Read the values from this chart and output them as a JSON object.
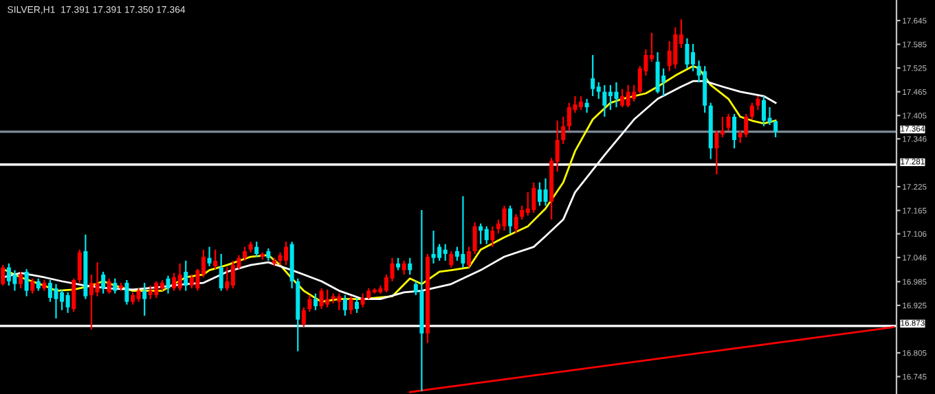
{
  "chart_data": {
    "type": "candlestick",
    "title": "SILVER,H1  17.391 17.391 17.350 17.364",
    "categories": [
      null,
      null,
      null,
      null,
      null,
      null,
      null,
      null,
      null,
      null,
      null,
      null,
      null,
      null,
      null,
      null,
      null,
      null,
      null,
      null,
      null,
      null,
      null,
      null,
      null,
      null,
      null,
      null,
      null,
      null,
      null,
      null,
      null,
      null,
      null,
      null,
      null,
      null,
      null,
      null,
      null,
      null,
      null,
      null,
      null,
      null,
      null,
      null,
      null,
      null,
      null,
      null,
      null,
      null,
      null,
      null,
      null,
      null,
      null,
      null,
      null,
      null,
      null,
      null,
      null,
      null,
      null,
      null,
      null,
      null,
      null,
      null,
      null,
      null,
      null,
      null,
      null,
      null,
      null,
      null,
      null,
      null,
      null,
      null,
      null,
      null,
      null,
      null,
      null,
      null,
      null,
      null,
      null,
      null,
      null,
      null,
      null,
      null,
      null,
      null,
      null,
      null,
      null,
      null,
      null,
      null,
      null,
      null,
      null,
      null,
      null,
      null,
      null,
      null,
      null,
      null,
      null,
      null,
      null,
      null,
      null,
      null,
      null,
      null,
      null,
      null,
      null,
      null,
      null,
      null,
      null,
      null,
      null,
      null,
      null,
      null,
      null,
      null,
      null,
      null,
      null,
      null,
      null,
      null,
      null,
      null,
      null,
      null,
      null,
      null,
      null,
      null
    ],
    "ohlc": [
      [
        16.979,
        17.027,
        16.975,
        17.021
      ],
      [
        17.021,
        17.031,
        16.975,
        16.986
      ],
      [
        17.003,
        17.014,
        16.962,
        16.979
      ],
      [
        16.979,
        17.01,
        16.968,
        17.003
      ],
      [
        17.01,
        17.017,
        16.948,
        16.962
      ],
      [
        16.962,
        16.993,
        16.955,
        16.986
      ],
      [
        16.986,
        16.993,
        16.962,
        16.968
      ],
      [
        16.968,
        16.989,
        16.962,
        16.982
      ],
      [
        16.982,
        16.989,
        16.934,
        16.944
      ],
      [
        16.968,
        16.979,
        16.892,
        16.941
      ],
      [
        16.958,
        16.965,
        16.913,
        16.934
      ],
      [
        16.951,
        16.958,
        16.906,
        16.92
      ],
      [
        16.916,
        16.993,
        16.909,
        16.989
      ],
      [
        16.989,
        17.066,
        16.982,
        17.059
      ],
      [
        17.062,
        17.104,
        16.941,
        16.948
      ],
      [
        16.951,
        17.003,
        16.864,
        16.982
      ],
      [
        16.958,
        17.034,
        16.948,
        16.982
      ],
      [
        17.003,
        17.01,
        16.955,
        16.968
      ],
      [
        16.958,
        16.993,
        16.955,
        16.986
      ],
      [
        16.982,
        16.993,
        16.955,
        16.962
      ],
      [
        16.968,
        16.982,
        16.962,
        16.975
      ],
      [
        16.982,
        16.989,
        16.927,
        16.934
      ],
      [
        16.934,
        16.958,
        16.927,
        16.951
      ],
      [
        16.941,
        16.968,
        16.934,
        16.962
      ],
      [
        16.962,
        16.982,
        16.899,
        16.941
      ],
      [
        16.951,
        16.975,
        16.941,
        16.962
      ],
      [
        16.951,
        16.986,
        16.944,
        16.982
      ],
      [
        16.968,
        16.989,
        16.962,
        16.982
      ],
      [
        16.993,
        17.0,
        16.955,
        16.968
      ],
      [
        16.968,
        17.007,
        16.962,
        16.996
      ],
      [
        16.968,
        17.031,
        16.962,
        17.003
      ],
      [
        17.01,
        17.038,
        16.962,
        16.975
      ],
      [
        16.975,
        17.003,
        16.968,
        16.996
      ],
      [
        16.968,
        17.017,
        16.962,
        17.014
      ],
      [
        17.003,
        17.066,
        16.996,
        17.048
      ],
      [
        17.045,
        17.073,
        17.024,
        17.031
      ],
      [
        17.024,
        17.066,
        17.017,
        17.038
      ],
      [
        17.021,
        17.055,
        16.962,
        16.968
      ],
      [
        16.968,
        17.021,
        16.962,
        16.986
      ],
      [
        16.975,
        17.038,
        16.968,
        17.027
      ],
      [
        17.021,
        17.052,
        17.017,
        17.045
      ],
      [
        17.045,
        17.073,
        17.038,
        17.062
      ],
      [
        17.066,
        17.086,
        17.059,
        17.08
      ],
      [
        17.073,
        17.086,
        17.048,
        17.055
      ],
      [
        17.048,
        17.059,
        17.041,
        17.055
      ],
      [
        17.062,
        17.069,
        17.038,
        17.045
      ],
      [
        17.031,
        17.045,
        17.024,
        17.038
      ],
      [
        17.038,
        17.059,
        17.027,
        17.052
      ],
      [
        17.038,
        17.086,
        17.027,
        17.073
      ],
      [
        17.08,
        17.086,
        16.968,
        16.986
      ],
      [
        16.986,
        16.993,
        16.809,
        16.889
      ],
      [
        16.878,
        16.92,
        16.871,
        16.913
      ],
      [
        16.916,
        16.951,
        16.909,
        16.941
      ],
      [
        16.941,
        16.955,
        16.913,
        16.923
      ],
      [
        16.923,
        16.968,
        16.916,
        16.962
      ],
      [
        16.927,
        16.965,
        16.92,
        16.941
      ],
      [
        16.941,
        16.955,
        16.93,
        16.948
      ],
      [
        16.934,
        16.955,
        16.913,
        16.948
      ],
      [
        16.941,
        16.951,
        16.899,
        16.913
      ],
      [
        16.913,
        16.948,
        16.903,
        16.941
      ],
      [
        16.934,
        16.944,
        16.906,
        16.916
      ],
      [
        16.927,
        16.955,
        16.92,
        16.944
      ],
      [
        16.944,
        16.968,
        16.941,
        16.962
      ],
      [
        16.958,
        16.968,
        16.955,
        16.965
      ],
      [
        16.958,
        16.975,
        16.955,
        16.968
      ],
      [
        16.962,
        17.003,
        16.958,
        16.996
      ],
      [
        16.993,
        17.045,
        16.986,
        17.031
      ],
      [
        17.031,
        17.045,
        17.014,
        17.021
      ],
      [
        17.014,
        17.038,
        17.003,
        17.031
      ],
      [
        17.031,
        17.045,
        17.003,
        17.014
      ],
      [
        16.979,
        16.986,
        16.951,
        16.958
      ],
      [
        16.962,
        17.166,
        16.708,
        16.854
      ],
      [
        16.854,
        17.055,
        16.83,
        17.048
      ],
      [
        17.055,
        17.114,
        17.031,
        17.045
      ],
      [
        17.073,
        17.08,
        17.038,
        17.045
      ],
      [
        17.066,
        17.08,
        17.038,
        17.055
      ],
      [
        17.027,
        17.062,
        17.021,
        17.055
      ],
      [
        17.062,
        17.073,
        17.038,
        17.048
      ],
      [
        17.055,
        17.201,
        17.021,
        17.031
      ],
      [
        17.027,
        17.073,
        17.021,
        17.062
      ],
      [
        17.062,
        17.135,
        17.055,
        17.125
      ],
      [
        17.125,
        17.132,
        17.08,
        17.114
      ],
      [
        17.118,
        17.125,
        17.08,
        17.09
      ],
      [
        17.09,
        17.125,
        17.073,
        17.114
      ],
      [
        17.118,
        17.142,
        17.107,
        17.132
      ],
      [
        17.125,
        17.177,
        17.114,
        17.17
      ],
      [
        17.17,
        17.177,
        17.107,
        17.125
      ],
      [
        17.118,
        17.156,
        17.107,
        17.149
      ],
      [
        17.149,
        17.177,
        17.142,
        17.166
      ],
      [
        17.159,
        17.211,
        17.152,
        17.17
      ],
      [
        17.166,
        17.236,
        17.159,
        17.222
      ],
      [
        17.218,
        17.236,
        17.177,
        17.187
      ],
      [
        17.218,
        17.246,
        17.177,
        17.187
      ],
      [
        17.187,
        17.298,
        17.142,
        17.291
      ],
      [
        17.288,
        17.392,
        17.263,
        17.343
      ],
      [
        17.343,
        17.402,
        17.333,
        17.378
      ],
      [
        17.378,
        17.437,
        17.367,
        17.426
      ],
      [
        17.419,
        17.454,
        17.412,
        17.433
      ],
      [
        17.426,
        17.454,
        17.419,
        17.44
      ],
      [
        17.437,
        17.447,
        17.412,
        17.426
      ],
      [
        17.499,
        17.558,
        17.454,
        17.472
      ],
      [
        17.478,
        17.489,
        17.447,
        17.465
      ],
      [
        17.465,
        17.482,
        17.402,
        17.43
      ],
      [
        17.465,
        17.482,
        17.419,
        17.454
      ],
      [
        17.465,
        17.489,
        17.426,
        17.447
      ],
      [
        17.43,
        17.472,
        17.426,
        17.454
      ],
      [
        17.43,
        17.482,
        17.426,
        17.465
      ],
      [
        17.447,
        17.482,
        17.44,
        17.465
      ],
      [
        17.465,
        17.53,
        17.461,
        17.524
      ],
      [
        17.517,
        17.572,
        17.506,
        17.558
      ],
      [
        17.548,
        17.614,
        17.541,
        17.558
      ],
      [
        17.541,
        17.565,
        17.461,
        17.465
      ],
      [
        17.506,
        17.524,
        17.454,
        17.489
      ],
      [
        17.53,
        17.593,
        17.517,
        17.569
      ],
      [
        17.534,
        17.628,
        17.524,
        17.61
      ],
      [
        17.586,
        17.648,
        17.576,
        17.61
      ],
      [
        17.586,
        17.6,
        17.524,
        17.534
      ],
      [
        17.565,
        17.586,
        17.517,
        17.534
      ],
      [
        17.53,
        17.544,
        17.489,
        17.506
      ],
      [
        17.517,
        17.53,
        17.412,
        17.43
      ],
      [
        17.43,
        17.437,
        17.295,
        17.322
      ],
      [
        17.322,
        17.367,
        17.256,
        17.361
      ],
      [
        17.357,
        17.402,
        17.35,
        17.367
      ],
      [
        17.374,
        17.409,
        17.367,
        17.402
      ],
      [
        17.402,
        17.409,
        17.322,
        17.343
      ],
      [
        17.35,
        17.367,
        17.336,
        17.361
      ],
      [
        17.357,
        17.409,
        17.35,
        17.402
      ],
      [
        17.402,
        17.437,
        17.395,
        17.43
      ],
      [
        17.43,
        17.454,
        17.419,
        17.447
      ],
      [
        17.444,
        17.454,
        17.378,
        17.392
      ],
      [
        17.399,
        17.426,
        17.381,
        17.388
      ],
      [
        17.391,
        17.391,
        17.35,
        17.364
      ],
      null,
      null,
      null,
      null,
      null,
      null,
      null,
      null,
      null,
      null,
      null,
      null,
      null,
      null,
      null,
      null,
      null,
      null,
      null,
      null
    ],
    "series": [
      {
        "type": "line",
        "color": "#ffff00",
        "values": [
          17.017,
          null,
          null,
          16.996,
          null,
          null,
          null,
          16.975,
          null,
          16.962,
          null,
          null,
          16.965,
          null,
          null,
          16.975,
          null,
          16.986,
          null,
          16.975,
          null,
          null,
          16.962,
          null,
          null,
          null,
          null,
          16.962,
          null,
          16.979,
          null,
          16.996,
          null,
          null,
          17.003,
          17.014,
          null,
          null,
          17.027,
          null,
          null,
          null,
          17.048,
          null,
          null,
          17.052,
          null,
          17.027,
          null,
          16.993,
          null,
          16.962,
          null,
          null,
          16.934,
          null,
          null,
          16.941,
          null,
          null,
          null,
          16.941,
          null,
          null,
          null,
          null,
          16.948,
          null,
          null,
          16.993,
          null,
          16.979,
          null,
          null,
          17.01,
          null,
          17.014,
          null,
          null,
          17.021,
          null,
          17.066,
          null,
          null,
          null,
          17.097,
          null,
          null,
          null,
          17.125,
          null,
          null,
          17.17,
          null,
          null,
          17.236,
          null,
          17.315,
          null,
          null,
          17.395,
          null,
          null,
          17.437,
          null,
          17.447,
          null,
          null,
          null,
          17.461,
          null,
          17.478,
          null,
          null,
          17.506,
          null,
          null,
          17.53,
          17.524,
          null,
          17.482,
          null,
          null,
          17.447,
          null,
          17.402,
          null,
          17.392,
          null,
          17.385,
          null,
          17.392,
          null,
          null,
          null,
          null,
          null,
          null,
          null,
          null,
          null,
          null,
          null,
          null,
          null,
          null,
          null,
          null,
          null,
          null,
          null,
          null
        ]
      },
      {
        "type": "line",
        "color": "#ffffff",
        "values": [
          16.996,
          null,
          null,
          17.007,
          null,
          null,
          null,
          16.996,
          null,
          null,
          16.986,
          null,
          null,
          null,
          16.975,
          null,
          null,
          null,
          16.968,
          null,
          null,
          null,
          16.965,
          null,
          null,
          null,
          null,
          16.972,
          null,
          null,
          null,
          16.979,
          null,
          null,
          16.982,
          null,
          null,
          null,
          17.01,
          null,
          null,
          null,
          17.027,
          null,
          null,
          17.034,
          null,
          null,
          null,
          17.014,
          null,
          17.003,
          null,
          null,
          16.986,
          null,
          null,
          16.962,
          null,
          null,
          null,
          16.941,
          null,
          null,
          16.941,
          null,
          null,
          null,
          16.958,
          null,
          null,
          16.962,
          null,
          null,
          null,
          null,
          16.979,
          null,
          null,
          null,
          null,
          17.014,
          null,
          null,
          null,
          17.048,
          null,
          null,
          null,
          null,
          17.073,
          null,
          17.1,
          null,
          null,
          17.142,
          null,
          17.211,
          null,
          null,
          null,
          null,
          17.305,
          null,
          null,
          null,
          null,
          17.395,
          null,
          null,
          null,
          17.447,
          null,
          null,
          null,
          17.478,
          null,
          17.492,
          null,
          17.492,
          null,
          null,
          17.478,
          null,
          null,
          17.465,
          null,
          null,
          null,
          17.454,
          null,
          17.437,
          null,
          null,
          null,
          null,
          null,
          null,
          null,
          null,
          null,
          null,
          null,
          null,
          null,
          null,
          null,
          null,
          null,
          null,
          null,
          null
        ]
      },
      {
        "type": "line",
        "color": "#ff0000",
        "values": [
          null,
          null,
          null,
          null,
          null,
          null,
          null,
          null,
          null,
          null,
          null,
          null,
          null,
          null,
          null,
          null,
          null,
          null,
          null,
          null,
          null,
          null,
          null,
          null,
          null,
          null,
          null,
          null,
          null,
          null,
          null,
          null,
          null,
          null,
          null,
          null,
          null,
          null,
          null,
          null,
          null,
          null,
          null,
          null,
          null,
          null,
          null,
          null,
          null,
          null,
          null,
          null,
          null,
          null,
          null,
          null,
          null,
          null,
          null,
          null,
          null,
          null,
          null,
          null,
          null,
          null,
          null,
          null,
          null,
          16.706,
          null,
          null,
          null,
          null,
          null,
          null,
          null,
          null,
          null,
          null,
          null,
          null,
          null,
          null,
          null,
          null,
          null,
          null,
          null,
          null,
          null,
          null,
          null,
          null,
          null,
          null,
          null,
          null,
          null,
          null,
          null,
          null,
          null,
          null,
          null,
          null,
          null,
          null,
          null,
          null,
          null,
          null,
          null,
          null,
          null,
          null,
          null,
          null,
          null,
          null,
          null,
          null,
          null,
          null,
          null,
          null,
          null,
          null,
          null,
          null,
          null,
          null,
          null,
          null,
          null,
          null,
          null,
          null,
          null,
          null,
          null,
          null,
          null,
          null,
          null,
          null,
          null,
          null,
          null,
          null,
          null,
          16.87
        ]
      }
    ],
    "ylim": [
      16.701,
      17.697
    ],
    "yticks": [
      16.745,
      16.805,
      16.925,
      16.985,
      17.046,
      17.106,
      17.165,
      17.225,
      17.346,
      17.405,
      17.465,
      17.525,
      17.585,
      17.645
    ],
    "ref_lines": [
      {
        "axis": "y",
        "value": 17.364,
        "label": "17.364",
        "color": "#7f8c99"
      },
      {
        "axis": "y",
        "value": 17.281,
        "label": "17.281",
        "color": "#ffffff"
      },
      {
        "axis": "y",
        "value": 16.873,
        "label": "16.873",
        "color": "#ffffff"
      }
    ],
    "tick_labels": "y",
    "grid": false
  }
}
